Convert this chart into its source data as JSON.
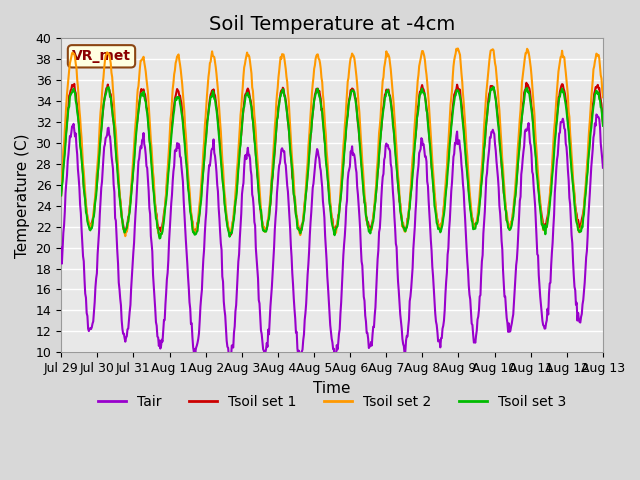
{
  "title": "Soil Temperature at -4cm",
  "xlabel": "Time",
  "ylabel": "Temperature (C)",
  "ylim": [
    10,
    40
  ],
  "annotation": "VR_met",
  "line_colors": {
    "Tair": "#9900cc",
    "Tsoil set 1": "#cc0000",
    "Tsoil set 2": "#ff9900",
    "Tsoil set 3": "#00bb00"
  },
  "background_color": "#e8e8e8",
  "grid_color": "#ffffff",
  "n_days": 15.5,
  "xtick_labels": [
    "Jul 29",
    "Jul 30",
    "Jul 31",
    "Aug 1",
    "Aug 2",
    "Aug 3",
    "Aug 4",
    "Aug 5",
    "Aug 6",
    "Aug 7",
    "Aug 8",
    "Aug 9",
    "Aug 10",
    "Aug 11",
    "Aug 12",
    "Aug 13"
  ],
  "points_per_day": 48,
  "title_fontsize": 14,
  "axis_label_fontsize": 11,
  "tick_fontsize": 9,
  "legend_fontsize": 10,
  "line_width": 1.5
}
